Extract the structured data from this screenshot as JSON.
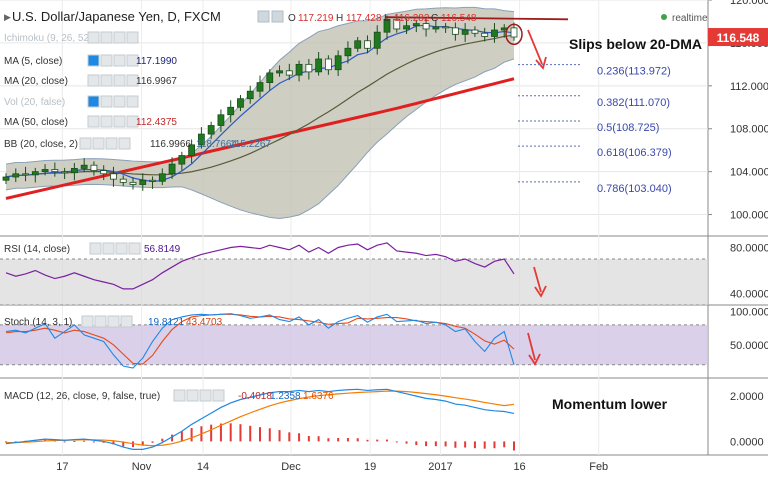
{
  "header": {
    "title": "U.S. Dollar/Japanese Yen, D, FXCM",
    "open_label": "O",
    "open": "117.219",
    "high_label": "H",
    "high": "117.428",
    "low_label": "L",
    "low": "116.282",
    "close_label": "C",
    "close": "116.548",
    "realtime": "realtime"
  },
  "indicators": [
    {
      "label": "Ichimoku (9, 26, 52, 26)",
      "value": ""
    },
    {
      "label": "MA (5, close)",
      "value": "117.1990"
    },
    {
      "label": "MA (20, close)",
      "value": "116.9967"
    },
    {
      "label": "Vol (20, false)",
      "value": ""
    },
    {
      "label": "MA (50, close)",
      "value": "112.4375"
    },
    {
      "label": "BB (20, close, 2)",
      "value": "116.9966",
      "value2": "118.7664",
      "value3": "115.2267"
    }
  ],
  "annotations": {
    "slip": "Slips below 20-DMA",
    "momentum": "Momentum lower"
  },
  "price_tag": "116.548",
  "colors": {
    "candle": "#1f7a1f",
    "ma5": "#2b59c3",
    "ma20": "#5a5a3a",
    "ma50": "#e02020",
    "bb_fill": "#bdbdad",
    "rsi": "#7b1fa2",
    "stoch_fill": "#d1c4e3",
    "macd": "#1e88e5",
    "signal": "#f57c00",
    "hist": "#e53935",
    "arrow": "#e53935"
  },
  "chart_data": [
    {
      "type": "candlestick",
      "title": "U.S. Dollar/Japanese Yen, D, FXCM",
      "ylim": [
        98,
        120
      ],
      "y_ticks": [
        "120.000",
        "116.000",
        "112.000",
        "108.000",
        "104.000",
        "100.000"
      ],
      "x_ticks": [
        "17",
        "Nov",
        "14",
        "Dec",
        "19",
        "2017",
        "16",
        "Feb"
      ],
      "closes": [
        103.5,
        103.8,
        103.7,
        104.0,
        104.2,
        104.0,
        103.9,
        104.3,
        104.6,
        104.1,
        103.8,
        103.3,
        103.0,
        102.8,
        103.2,
        103.1,
        103.8,
        104.7,
        105.5,
        106.5,
        107.5,
        108.3,
        109.3,
        110.0,
        110.8,
        111.5,
        112.3,
        113.2,
        113.4,
        113.0,
        114.0,
        113.3,
        114.5,
        113.5,
        114.8,
        115.5,
        116.2,
        115.5,
        117.0,
        118.2,
        117.3,
        117.6,
        117.8,
        117.3,
        117.5,
        117.4,
        116.8,
        117.2,
        116.9,
        116.6,
        117.2,
        117.4,
        116.55
      ],
      "ma5": {
        "name": "MA (5, close)",
        "value": 117.199
      },
      "ma20": {
        "name": "MA (20, close)",
        "value": 116.9967
      },
      "ma50": {
        "name": "MA (50, close)",
        "value": 112.4375
      },
      "bb": {
        "name": "BB (20, close, 2)",
        "mid": 116.9966,
        "upper": 118.7664,
        "lower": 115.2267
      },
      "last": 116.548,
      "fib_levels": [
        {
          "ratio": "0.236",
          "value": "113.972"
        },
        {
          "ratio": "0.382",
          "value": "111.070"
        },
        {
          "ratio": "0.5",
          "value": "108.725"
        },
        {
          "ratio": "0.618",
          "value": "106.379"
        },
        {
          "ratio": "0.786",
          "value": "103.040"
        }
      ]
    },
    {
      "type": "line",
      "title": "RSI (14, close)",
      "value": "56.8149",
      "ylim": [
        30,
        90
      ],
      "y_ticks": [
        "80.0000",
        "40.0000"
      ],
      "band": [
        70,
        30
      ],
      "values": [
        58,
        55,
        57,
        60,
        56,
        53,
        55,
        58,
        55,
        52,
        50,
        48,
        44,
        44,
        48,
        52,
        58,
        63,
        68,
        71,
        74,
        76,
        78,
        80,
        81,
        80,
        79,
        82,
        80,
        78,
        82,
        76,
        80,
        75,
        80,
        82,
        83,
        78,
        82,
        84,
        77,
        76,
        75,
        73,
        74,
        72,
        68,
        70,
        66,
        63,
        68,
        70,
        57
      ]
    },
    {
      "type": "line",
      "title": "Stoch (14, 3, 1)",
      "k_value": "19.8121",
      "d_value": "43.4703",
      "ylim": [
        0,
        110
      ],
      "y_ticks": [
        "100.0000",
        "50.0000"
      ],
      "band": [
        80,
        20
      ],
      "k": [
        70,
        72,
        68,
        75,
        82,
        60,
        70,
        80,
        65,
        60,
        55,
        35,
        18,
        15,
        30,
        55,
        75,
        88,
        92,
        95,
        96,
        95,
        96,
        97,
        94,
        90,
        92,
        95,
        88,
        85,
        92,
        80,
        88,
        75,
        85,
        90,
        94,
        84,
        92,
        96,
        85,
        86,
        87,
        82,
        84,
        80,
        70,
        74,
        55,
        40,
        60,
        70,
        19.8
      ],
      "d": [
        68,
        70,
        70,
        72,
        75,
        72,
        68,
        72,
        70,
        65,
        60,
        50,
        36,
        22,
        21,
        34,
        55,
        73,
        85,
        92,
        94,
        95,
        96,
        96,
        95,
        93,
        92,
        93,
        92,
        89,
        88,
        86,
        84,
        81,
        82,
        83,
        90,
        89,
        90,
        91,
        91,
        89,
        86,
        85,
        84,
        82,
        78,
        75,
        66,
        56,
        51,
        57,
        43.5
      ]
    },
    {
      "type": "line",
      "title": "MACD (12, 26, close, 9, false, true)",
      "hist_value": "-0.4018",
      "macd_value": "1.2358",
      "signal_value": "1.6376",
      "ylim": [
        -0.6,
        2.8
      ],
      "y_ticks": [
        "2.0000",
        "0.0000"
      ],
      "macd": [
        -0.1,
        -0.05,
        0,
        0.05,
        0.1,
        0.08,
        0.05,
        0.08,
        0.1,
        0.05,
        0,
        -0.1,
        -0.25,
        -0.35,
        -0.35,
        -0.25,
        -0.05,
        0.2,
        0.45,
        0.75,
        1.0,
        1.25,
        1.5,
        1.7,
        1.85,
        1.95,
        2.05,
        2.15,
        2.2,
        2.2,
        2.25,
        2.2,
        2.25,
        2.2,
        2.25,
        2.28,
        2.3,
        2.25,
        2.28,
        2.3,
        2.2,
        2.1,
        2.0,
        1.9,
        1.85,
        1.78,
        1.65,
        1.6,
        1.5,
        1.4,
        1.35,
        1.32,
        1.2358
      ],
      "signal": [
        -0.05,
        -0.05,
        -0.03,
        -0.01,
        0.02,
        0.04,
        0.05,
        0.06,
        0.07,
        0.07,
        0.06,
        0.03,
        -0.03,
        -0.1,
        -0.16,
        -0.19,
        -0.17,
        -0.1,
        0.01,
        0.16,
        0.33,
        0.51,
        0.71,
        0.9,
        1.09,
        1.26,
        1.42,
        1.57,
        1.7,
        1.8,
        1.89,
        1.96,
        2.02,
        2.06,
        2.1,
        2.13,
        2.16,
        2.18,
        2.2,
        2.22,
        2.22,
        2.2,
        2.16,
        2.11,
        2.06,
        2.0,
        1.93,
        1.87,
        1.8,
        1.72,
        1.65,
        1.58,
        1.6376
      ],
      "hist": [
        -0.05,
        0,
        0.03,
        0.06,
        0.08,
        0.04,
        0,
        0.02,
        0.03,
        -0.02,
        -0.06,
        -0.13,
        -0.22,
        -0.25,
        -0.19,
        -0.06,
        0.12,
        0.3,
        0.44,
        0.59,
        0.67,
        0.74,
        0.79,
        0.8,
        0.76,
        0.69,
        0.63,
        0.58,
        0.5,
        0.4,
        0.36,
        0.24,
        0.23,
        0.14,
        0.15,
        0.15,
        0.14,
        0.07,
        0.08,
        0.08,
        -0.02,
        -0.1,
        -0.16,
        -0.21,
        -0.21,
        -0.22,
        -0.28,
        -0.27,
        -0.3,
        -0.32,
        -0.3,
        -0.26,
        -0.4018
      ]
    }
  ]
}
